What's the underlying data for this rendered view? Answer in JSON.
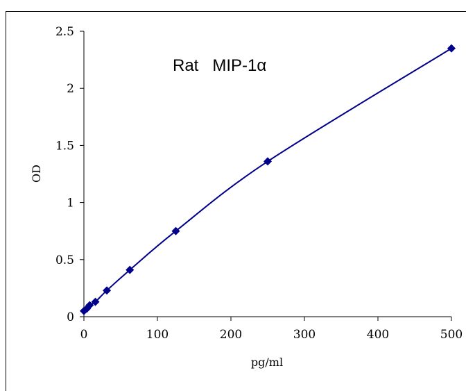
{
  "chart_data": {
    "type": "line",
    "title": "Rat   MIP-1α",
    "xlabel": "pg/ml",
    "ylabel": "OD",
    "xlim": [
      0,
      500
    ],
    "ylim": [
      0,
      2.5
    ],
    "x_ticks": [
      0,
      100,
      200,
      300,
      400,
      500
    ],
    "x_tick_labels": [
      "0",
      "100",
      "200",
      "300",
      "400",
      "500"
    ],
    "y_ticks": [
      0,
      0.5,
      1,
      1.5,
      2,
      2.5
    ],
    "y_tick_labels": [
      "0",
      "0.5",
      "1",
      "1.5",
      "2",
      "2.5"
    ],
    "grid": false,
    "legend": "none",
    "series": [
      {
        "marker": "diamond",
        "color": "#00008b",
        "x": [
          0,
          3.9,
          7.8,
          15.6,
          31.2,
          62.5,
          125,
          250,
          500
        ],
        "y": [
          0.05,
          0.07,
          0.1,
          0.13,
          0.23,
          0.41,
          0.75,
          1.36,
          2.35
        ]
      }
    ]
  }
}
